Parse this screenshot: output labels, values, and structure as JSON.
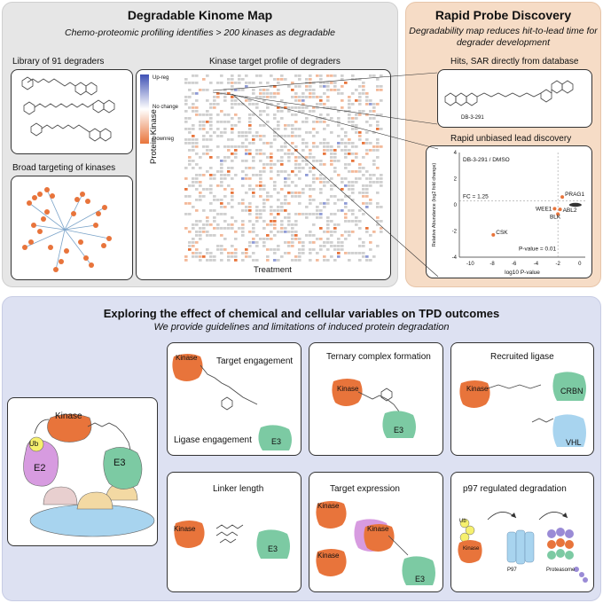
{
  "kinome": {
    "title": "Degradable Kinome Map",
    "subtitle": "Chemo-proteomic profiling identifies > 200 kinases as degradable",
    "library_label": "Library of 91 degraders",
    "broad_label": "Broad targeting of kinases",
    "heatmap_title": "Kinase target profile of degraders",
    "heatmap_ylabel": "Protein Kinase",
    "heatmap_xlabel": "Treatment",
    "legend": {
      "up": "Up-reg",
      "none": "No change",
      "down": "Downreg"
    }
  },
  "probe": {
    "title": "Rapid Probe Discovery",
    "subtitle_line1": "Degradability map reduces hit-to-lead time for",
    "subtitle_line2": "degrader development",
    "hits_label": "Hits, SAR directly from database",
    "compound": "DB-3-291",
    "lead_label": "Rapid unbiased lead discovery"
  },
  "chart_data": {
    "type": "scatter",
    "title": "DB-3-291  / DMSO",
    "xlabel": "log10 P-value",
    "ylabel": "Relative Abundance (log2 fold change)",
    "xlim": [
      -11,
      0.5
    ],
    "ylim": [
      -4,
      4
    ],
    "xticks": [
      -10,
      -8,
      -6,
      -4,
      -2,
      0
    ],
    "yticks": [
      -4,
      -2,
      0,
      2,
      4
    ],
    "fc_label": "FC = 1.25",
    "p_label": "P-value = 0.01",
    "labeled_points": [
      {
        "name": "PRAG1",
        "x": -1.6,
        "y": 0.6
      },
      {
        "name": "WEE1",
        "x": -2.3,
        "y": -0.3
      },
      {
        "name": "ABL2",
        "x": -1.8,
        "y": -0.35
      },
      {
        "name": "BLK",
        "x": -2.0,
        "y": -0.7
      },
      {
        "name": "CSK",
        "x": -7.9,
        "y": -2.3
      }
    ]
  },
  "tpd": {
    "title": "Exploring the effect of chemical and cellular variables on TPD outcomes",
    "subtitle": "We provide guidelines and limitations of induced protein degradation",
    "target_engagement": "Target engagement",
    "ligase_engagement": "Ligase engagement",
    "ternary": "Ternary complex formation",
    "recruited": "Recruited ligase",
    "linker": "Linker length",
    "expression": "Target expression",
    "p97": "p97 regulated degradation",
    "kinase": "Kinase",
    "e3": "E3",
    "e2": "E2",
    "ub": "Ub",
    "crbn": "CRBN",
    "vhl": "VHL",
    "p97_label": "P97",
    "proteasome": "Proteasome"
  },
  "colors": {
    "kinase": "#e8743b",
    "e3": "#7ccaa3",
    "e2": "#d79be0",
    "vhl": "#a8d4ef",
    "up": "#3f51b5",
    "down": "#e8743b"
  }
}
